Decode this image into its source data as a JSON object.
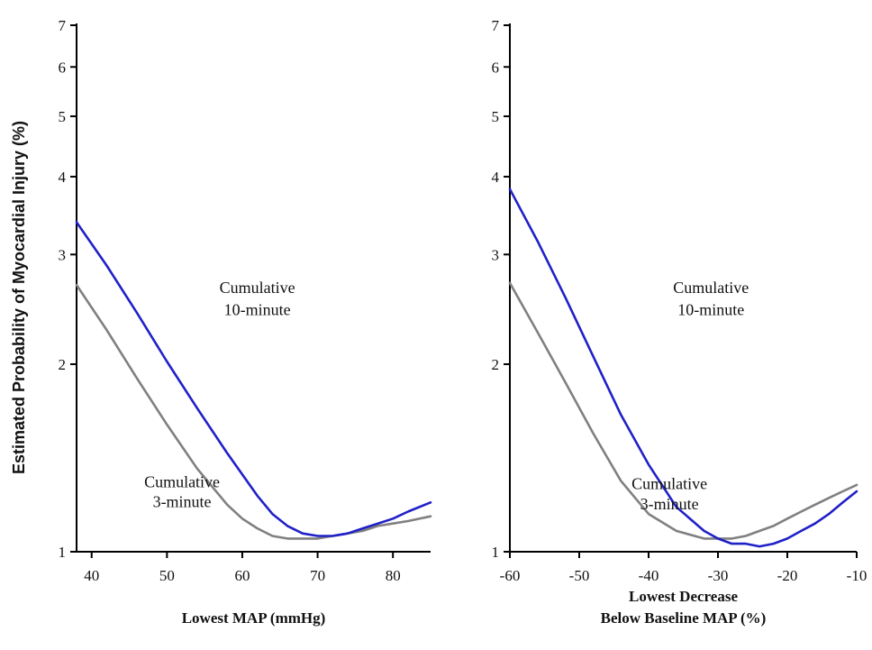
{
  "ylabel": "Estimated Probability of Myocardial Injury (%)",
  "chart_data": [
    {
      "type": "line",
      "xlabel": "Lowest MAP (mmHg)",
      "ylabel": "Estimated Probability of Myocardial Injury (%)",
      "xlim": [
        38,
        85
      ],
      "ylim": [
        1,
        7
      ],
      "y_scale": "log",
      "x_ticks": [
        40,
        50,
        60,
        70,
        80
      ],
      "y_ticks": [
        1,
        2,
        3,
        4,
        5,
        6,
        7
      ],
      "grid": false,
      "series": [
        {
          "name": "Cumulative 10-minute",
          "color": "#2020c8",
          "x": [
            38,
            42,
            46,
            50,
            54,
            58,
            62,
            64,
            66,
            68,
            70,
            72,
            74,
            76,
            78,
            80,
            82,
            85
          ],
          "y": [
            3.38,
            2.88,
            2.42,
            2.02,
            1.7,
            1.44,
            1.23,
            1.15,
            1.1,
            1.07,
            1.06,
            1.06,
            1.07,
            1.09,
            1.11,
            1.13,
            1.16,
            1.2
          ]
        },
        {
          "name": "Cumulative 3-minute",
          "color": "#808080",
          "x": [
            38,
            42,
            46,
            50,
            54,
            58,
            60,
            62,
            64,
            66,
            68,
            70,
            72,
            74,
            76,
            78,
            80,
            82,
            85
          ],
          "y": [
            2.68,
            2.27,
            1.9,
            1.6,
            1.36,
            1.19,
            1.13,
            1.09,
            1.06,
            1.05,
            1.05,
            1.05,
            1.06,
            1.07,
            1.08,
            1.1,
            1.11,
            1.12,
            1.14
          ]
        }
      ],
      "annotations": [
        {
          "text": "Cumulative",
          "x": 62,
          "y": 2.6
        },
        {
          "text": "10-minute",
          "x": 62,
          "y": 2.4
        },
        {
          "text": "Cumulative",
          "x": 52,
          "y": 1.27
        },
        {
          "text": "3-minute",
          "x": 52,
          "y": 1.18
        }
      ]
    },
    {
      "type": "line",
      "xlabel": "Lowest Decrease\nBelow Baseline MAP (%)",
      "ylabel": "",
      "xlim": [
        -60,
        -10
      ],
      "ylim": [
        1,
        7
      ],
      "y_scale": "log",
      "x_ticks": [
        -60,
        -50,
        -40,
        -30,
        -20,
        -10
      ],
      "y_ticks": [
        1,
        2,
        3,
        4,
        5,
        6,
        7
      ],
      "grid": false,
      "series": [
        {
          "name": "Cumulative 10-minute",
          "color": "#2020c8",
          "x": [
            -60,
            -56,
            -52,
            -48,
            -44,
            -40,
            -36,
            -32,
            -30,
            -28,
            -26,
            -24,
            -22,
            -20,
            -18,
            -16,
            -14,
            -12,
            -10
          ],
          "y": [
            3.82,
            3.15,
            2.56,
            2.06,
            1.66,
            1.38,
            1.18,
            1.08,
            1.05,
            1.03,
            1.03,
            1.02,
            1.03,
            1.05,
            1.08,
            1.11,
            1.15,
            1.2,
            1.25
          ]
        },
        {
          "name": "Cumulative 3-minute",
          "color": "#808080",
          "x": [
            -60,
            -56,
            -52,
            -48,
            -44,
            -40,
            -36,
            -32,
            -30,
            -28,
            -26,
            -24,
            -22,
            -20,
            -18,
            -16,
            -14,
            -12,
            -10
          ],
          "y": [
            2.7,
            2.25,
            1.87,
            1.55,
            1.3,
            1.15,
            1.08,
            1.05,
            1.05,
            1.05,
            1.06,
            1.08,
            1.1,
            1.13,
            1.16,
            1.19,
            1.22,
            1.25,
            1.28
          ]
        }
      ],
      "annotations": [
        {
          "text": "Cumulative",
          "x": -31,
          "y": 2.6
        },
        {
          "text": "10-minute",
          "x": -31,
          "y": 2.4
        },
        {
          "text": "Cumulative",
          "x": -37,
          "y": 1.26
        },
        {
          "text": "3-minute",
          "x": -37,
          "y": 1.17
        }
      ]
    }
  ]
}
